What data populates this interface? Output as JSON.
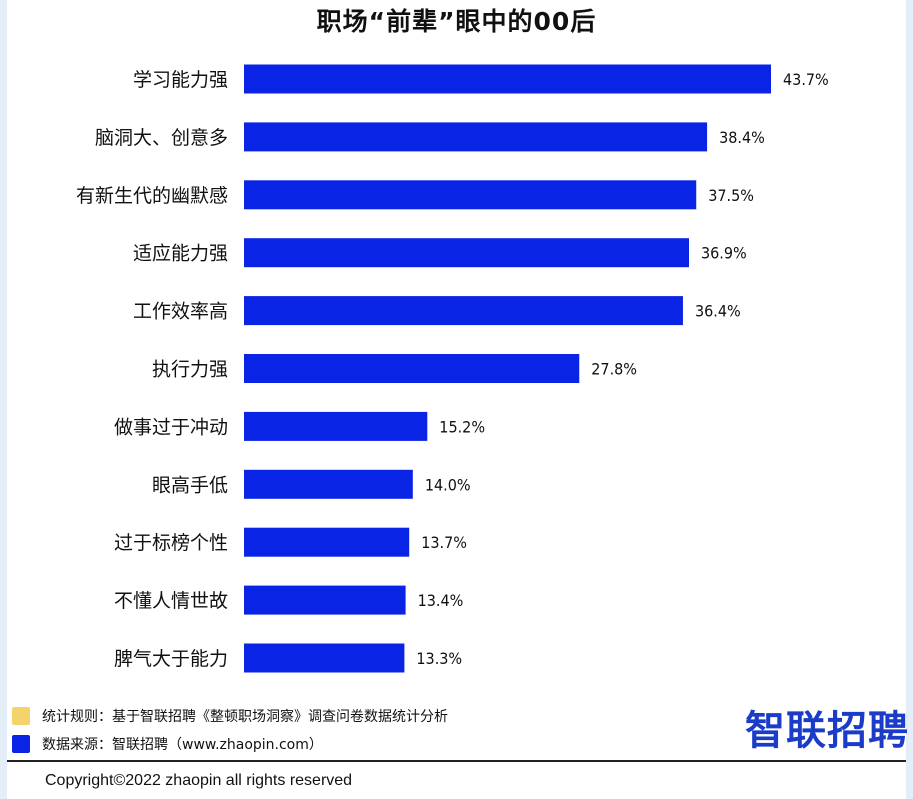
{
  "title": "职场“前辈”眼中的00后",
  "colors": {
    "bar": "#0a24e6",
    "rule_swatch": "#f5d36b",
    "source_swatch": "#0a24e6",
    "logo": "#1a3cc8"
  },
  "chart_data": {
    "type": "bar",
    "orientation": "horizontal",
    "title": "职场“前辈”眼中的00后",
    "categories": [
      "学习能力强",
      "脑洞大、创意多",
      "有新生代的幽默感",
      "适应能力强",
      "工作效率高",
      "执行力强",
      "做事过于冲动",
      "眼高手低",
      "过于标榜个性",
      "不懂人情世故",
      "脾气大于能力"
    ],
    "values": [
      43.7,
      38.4,
      37.5,
      36.9,
      36.4,
      27.8,
      15.2,
      14.0,
      13.7,
      13.4,
      13.3
    ],
    "value_labels": [
      "43.7%",
      "38.4%",
      "37.5%",
      "36.9%",
      "36.4%",
      "27.8%",
      "15.2%",
      "14.0%",
      "13.7%",
      "13.4%",
      "13.3%"
    ],
    "unit": "%",
    "xlim": [
      0,
      43.7
    ],
    "grid": false,
    "legend": "none"
  },
  "notes": {
    "rule": "统计规则：基于智联招聘《整顿职场洞察》调查问卷数据统计分析",
    "source": "数据来源：智联招聘（www.zhaopin.com）"
  },
  "logo_text": "智联招聘",
  "copyright": "Copyright©2022 zhaopin all rights reserved"
}
